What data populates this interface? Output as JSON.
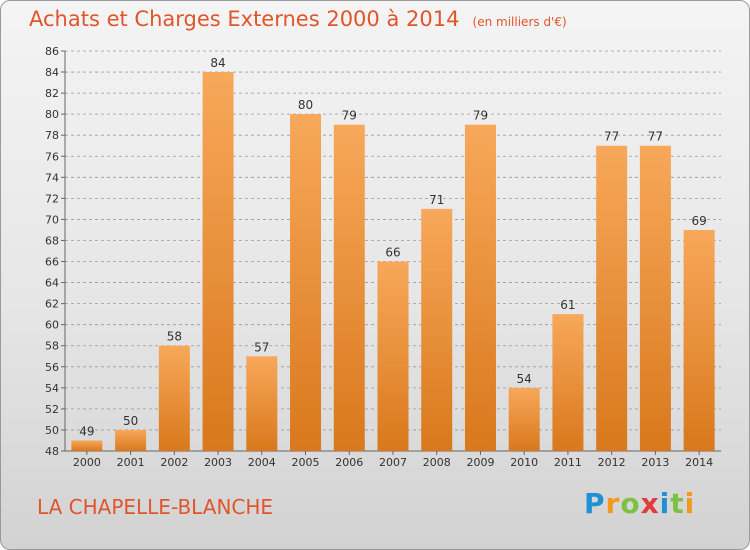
{
  "header": {
    "title": "Achats et Charges Externes 2000 à 2014",
    "subtitle": "(en milliers d'€)"
  },
  "footer": {
    "commune": "LA CHAPELLE-BLANCHE",
    "brand": "Proxiti",
    "brand_letters": [
      {
        "ch": "P",
        "color": "#1f8fd6"
      },
      {
        "ch": "r",
        "color": "#f39a1e"
      },
      {
        "ch": "o",
        "color": "#7cc242"
      },
      {
        "ch": "x",
        "color": "#e23b3b"
      },
      {
        "ch": "i",
        "color": "#1f8fd6"
      },
      {
        "ch": "t",
        "color": "#7cc242"
      },
      {
        "ch": "i",
        "color": "#f39a1e"
      }
    ]
  },
  "colors": {
    "title": "#e0552a",
    "bar_light": "#f7a85a",
    "bar_dark": "#d9781c",
    "grid": "#9a9a9a"
  },
  "chart_data": {
    "type": "bar",
    "title": "Achats et Charges Externes 2000 à 2014",
    "subtitle": "(en milliers d'€)",
    "xlabel": "",
    "ylabel": "",
    "categories": [
      "2000",
      "2001",
      "2002",
      "2003",
      "2004",
      "2005",
      "2006",
      "2007",
      "2008",
      "2009",
      "2010",
      "2011",
      "2012",
      "2013",
      "2014"
    ],
    "values": [
      49,
      50,
      58,
      84,
      57,
      80,
      79,
      66,
      71,
      79,
      54,
      61,
      77,
      77,
      69
    ],
    "ylim": [
      48,
      86
    ],
    "yticks": [
      48,
      50,
      52,
      54,
      56,
      58,
      60,
      62,
      64,
      66,
      68,
      70,
      72,
      74,
      76,
      78,
      80,
      82,
      84,
      86
    ],
    "grid": "horizontal dashed",
    "legend": "none"
  }
}
